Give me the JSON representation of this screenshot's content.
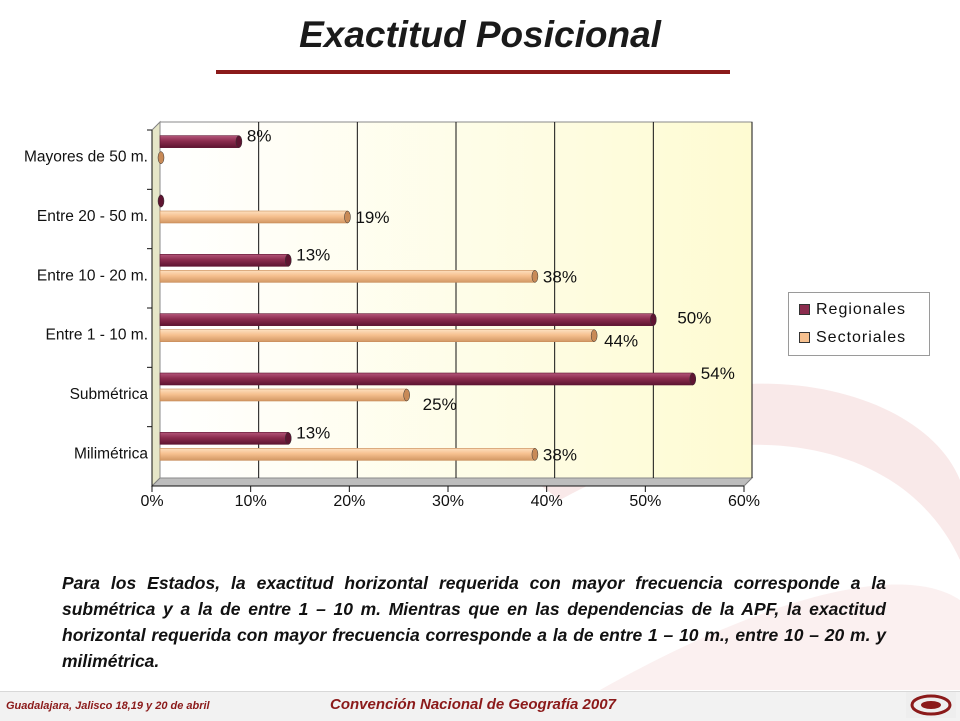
{
  "title": "Exactitud Posicional",
  "colors": {
    "regionales": "#8b2c4e",
    "sectoriales": "#f6c08f",
    "accent": "#8b1a1a",
    "plot_bg_start": "#ffffff",
    "plot_bg_end": "#fefbd2"
  },
  "chart_data": {
    "type": "bar",
    "orientation": "horizontal",
    "categories": [
      "Mayores de 50 m.",
      "Entre 20 - 50 m.",
      "Entre 10 - 20 m.",
      "Entre 1 - 10 m.",
      "Submétrica",
      "Milimétrica"
    ],
    "series": [
      {
        "name": "Regionales",
        "values": [
          8,
          0,
          13,
          50,
          54,
          13
        ],
        "labels": [
          "8%",
          "",
          "13%",
          "50%",
          "54%",
          "13%"
        ]
      },
      {
        "name": "Sectoriales",
        "values": [
          0,
          19,
          38,
          44,
          25,
          38
        ],
        "labels": [
          "",
          "19%",
          "38%",
          "44%",
          "25%",
          "38%"
        ]
      }
    ],
    "xticks": [
      "0%",
      "10%",
      "20%",
      "30%",
      "40%",
      "50%",
      "60%"
    ],
    "xlim": [
      0,
      60
    ],
    "grid": true,
    "legend": "right"
  },
  "legend": {
    "regionales": "Regionales",
    "sectoriales": "Sectoriales"
  },
  "caption": "Para los Estados, la exactitud horizontal requerida con mayor frecuencia corresponde a la submétrica y a la de entre 1 – 10 m.  Mientras que en las dependencias de la APF, la exactitud horizontal requerida con mayor frecuencia corresponde a la de entre 1 – 10 m., entre 10 – 20 m. y milimétrica.",
  "footer": {
    "left": "Guadalajara, Jalisco 18,19 y 20 de abril",
    "center": "Convención Nacional de Geografía 2007"
  }
}
